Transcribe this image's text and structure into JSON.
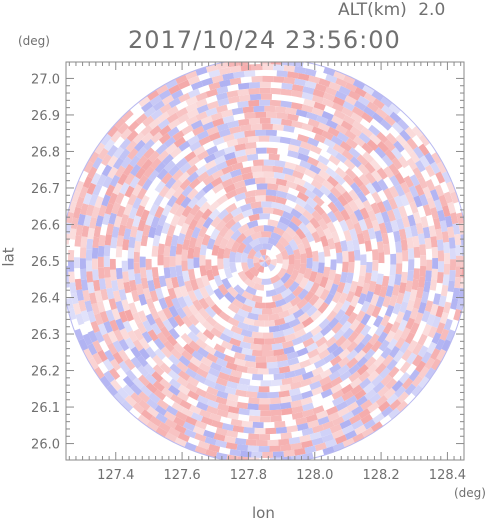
{
  "header": {
    "altitude_label": "ALT(km)",
    "altitude_value": "2.0",
    "timestamp": "2017/10/24 23:56:00",
    "y_unit": "(deg)",
    "x_unit": "(deg)"
  },
  "chart_data": {
    "type": "heatmap",
    "title": "2017/10/24 23:56:00",
    "xlabel": "lon",
    "ylabel": "lat",
    "x_unit": "(deg)",
    "y_unit": "(deg)",
    "xlim": [
      127.25,
      128.45
    ],
    "ylim": [
      25.955,
      27.045
    ],
    "x_ticks": [
      "127.4",
      "127.6",
      "127.8",
      "128.0",
      "128.2",
      "128.4"
    ],
    "y_ticks": [
      "27.0",
      "26.9",
      "26.8",
      "26.7",
      "26.6",
      "26.5",
      "26.4",
      "26.3",
      "26.2",
      "26.1",
      "26.0"
    ],
    "radar_center": [
      127.85,
      26.5
    ],
    "grid": false,
    "colors": {
      "positive": "#f4a6a6",
      "negative": "#aeb0f2",
      "frame": "#8a8a8a"
    }
  }
}
